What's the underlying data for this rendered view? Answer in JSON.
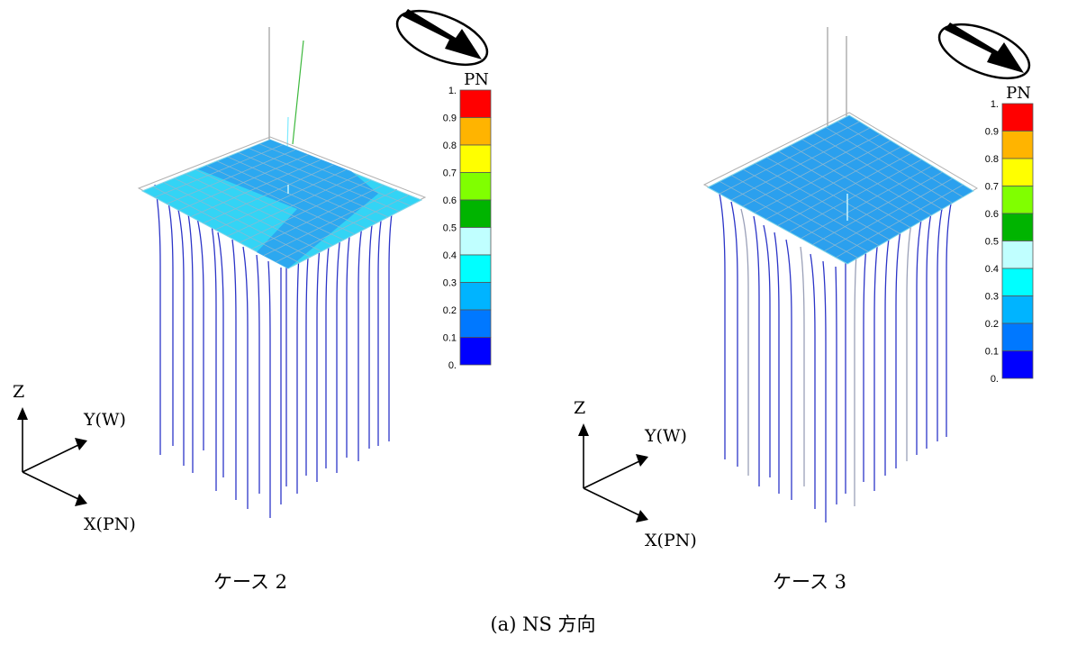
{
  "figure_caption": "(a) NS 方向",
  "panels": [
    {
      "case_label": "ケース 2",
      "legend_title": "PN",
      "scale_labels": [
        "1.",
        "0.9",
        "0.8",
        "0.7",
        "0.6",
        "0.5",
        "0.4",
        "0.3",
        "0.2",
        "0.1",
        "0."
      ],
      "axis_labels": {
        "z": "Z",
        "y": "Y(W)",
        "x": "X(PN)"
      }
    },
    {
      "case_label": "ケース 3",
      "legend_title": "PN",
      "scale_labels": [
        "1.",
        "0.9",
        "0.8",
        "0.7",
        "0.6",
        "0.5",
        "0.4",
        "0.3",
        "0.2",
        "0.1",
        "0."
      ],
      "axis_labels": {
        "z": "Z",
        "y": "Y(W)",
        "x": "X(PN)"
      }
    }
  ],
  "colors": {
    "scale": [
      "#ff0000",
      "#ffb400",
      "#ffff00",
      "#80ff00",
      "#00b400",
      "#c0ffff",
      "#00ffff",
      "#00b4ff",
      "#0078ff",
      "#0000ff"
    ],
    "slab_light": "#33d4f5",
    "slab_dark": "#2ba0ee",
    "pile": "#2c35c8"
  }
}
